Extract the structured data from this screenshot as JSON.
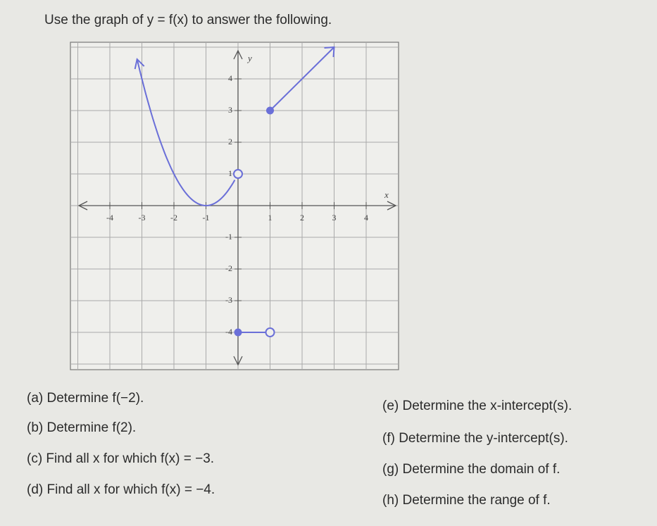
{
  "header": {
    "title": "Use the graph of y = f(x) to answer the following."
  },
  "graph": {
    "x_label": "x",
    "y_label": "y",
    "x_ticks": [
      -4,
      -3,
      -2,
      -1,
      1,
      2,
      3,
      4
    ],
    "y_ticks": [
      4,
      3,
      2,
      1,
      -1,
      -2,
      -3,
      -4
    ]
  },
  "questions": {
    "left": [
      "(a) Determine f(−2).",
      "(b) Determine f(2).",
      "(c) Find all x for which f(x) = −3.",
      "(d) Find all x for which f(x) = −4."
    ],
    "right": [
      "(e) Determine the x-intercept(s).",
      "(f) Determine the y-intercept(s).",
      "(g) Determine the domain of f.",
      "(h) Determine the range of f."
    ]
  }
}
